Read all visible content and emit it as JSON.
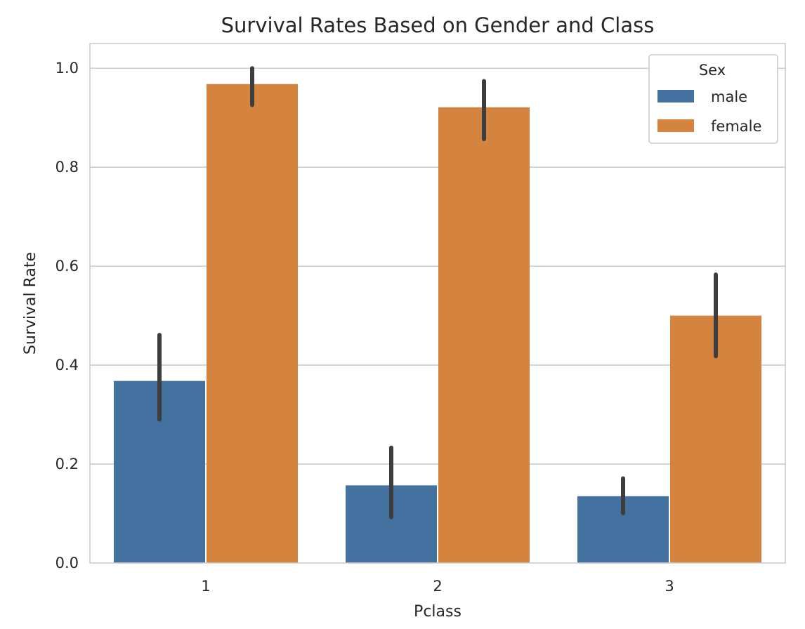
{
  "chart_data": {
    "type": "bar",
    "title": "Survival Rates Based on Gender and Class",
    "xlabel": "Pclass",
    "ylabel": "Survival Rate",
    "categories": [
      "1",
      "2",
      "3"
    ],
    "ylim": [
      0,
      1.05
    ],
    "yticks": [
      "0.0",
      "0.2",
      "0.4",
      "0.6",
      "0.8",
      "1.0"
    ],
    "grid": "horizontal",
    "legend": {
      "title": "Sex",
      "placement": "top-right"
    },
    "series": [
      {
        "name": "male",
        "color": "#4372a0",
        "values": [
          0.368,
          0.157,
          0.135
        ],
        "ci_low": [
          0.29,
          0.093,
          0.101
        ],
        "ci_high": [
          0.461,
          0.233,
          0.171
        ]
      },
      {
        "name": "female",
        "color": "#d4843e",
        "values": [
          0.968,
          0.921,
          0.5
        ],
        "ci_low": [
          0.926,
          0.857,
          0.418
        ],
        "ci_high": [
          1.0,
          0.974,
          0.583
        ]
      }
    ]
  }
}
